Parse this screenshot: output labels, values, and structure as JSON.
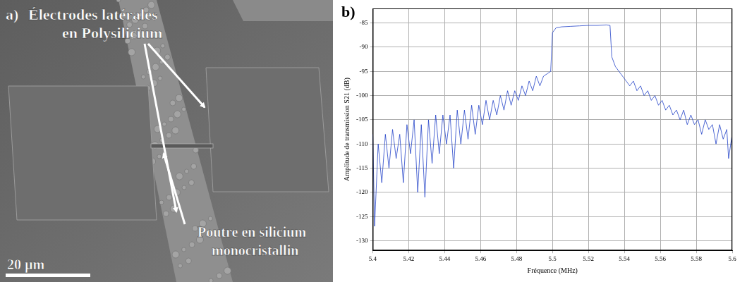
{
  "figure": {
    "image_panel": {
      "label": "a)",
      "annotations": [
        [
          "Électrodes latérales",
          "en Polysilicium"
        ],
        [
          "Poutre en silicium",
          "monocristallin"
        ]
      ],
      "scale_bar": "20 µm"
    },
    "chart_label": "b)"
  },
  "chart_data": {
    "type": "line",
    "x_label": "Fréquence (MHz)",
    "y_label": "Amplitude de transmission S21 (dB)",
    "x": [
      5.4,
      5.401,
      5.403,
      5.405,
      5.407,
      5.409,
      5.411,
      5.413,
      5.415,
      5.417,
      5.419,
      5.421,
      5.423,
      5.425,
      5.427,
      5.429,
      5.431,
      5.433,
      5.435,
      5.437,
      5.439,
      5.441,
      5.443,
      5.445,
      5.447,
      5.449,
      5.451,
      5.453,
      5.455,
      5.457,
      5.459,
      5.461,
      5.463,
      5.465,
      5.467,
      5.469,
      5.471,
      5.473,
      5.475,
      5.477,
      5.479,
      5.481,
      5.483,
      5.485,
      5.487,
      5.489,
      5.491,
      5.493,
      5.495,
      5.497,
      5.499,
      5.5,
      5.502,
      5.505,
      5.51,
      5.515,
      5.52,
      5.525,
      5.53,
      5.532,
      5.533,
      5.535,
      5.537,
      5.539,
      5.541,
      5.543,
      5.545,
      5.547,
      5.549,
      5.551,
      5.553,
      5.555,
      5.557,
      5.559,
      5.561,
      5.563,
      5.565,
      5.567,
      5.569,
      5.571,
      5.573,
      5.575,
      5.577,
      5.579,
      5.581,
      5.583,
      5.585,
      5.587,
      5.589,
      5.591,
      5.593,
      5.595,
      5.597,
      5.598,
      5.6
    ],
    "values": [
      -108,
      -127,
      -110,
      -118,
      -108,
      -115,
      -107,
      -113,
      -108,
      -118,
      -106,
      -112,
      -105,
      -120,
      -106,
      -121,
      -105,
      -114,
      -104,
      -112,
      -104,
      -110,
      -104,
      -115,
      -103,
      -110,
      -103,
      -109,
      -102,
      -108,
      -102,
      -106,
      -101,
      -105,
      -101,
      -104,
      -100,
      -103,
      -99,
      -102,
      -99,
      -101,
      -98,
      -100,
      -97,
      -99,
      -96,
      -98,
      -96,
      -95.5,
      -95,
      -87,
      -86,
      -85.8,
      -85.7,
      -85.6,
      -85.5,
      -85.5,
      -85.4,
      -85.5,
      -92,
      -94,
      -95,
      -96,
      -97,
      -98,
      -97,
      -99,
      -98,
      -100,
      -99,
      -101,
      -100,
      -102,
      -101,
      -103,
      -102,
      -104,
      -103,
      -105,
      -103,
      -106,
      -104,
      -106,
      -105,
      -108,
      -105,
      -107,
      -106,
      -110,
      -106,
      -109,
      -107,
      -113,
      -108
    ],
    "color": "#2343c8",
    "xlim": [
      5.4,
      5.6
    ],
    "xticks": [
      5.4,
      5.42,
      5.44,
      5.46,
      5.48,
      5.5,
      5.52,
      5.54,
      5.56,
      5.58,
      5.6
    ],
    "ylim": [
      -132,
      -82
    ],
    "yticks": [
      -130,
      -125,
      -120,
      -115,
      -110,
      -105,
      -100,
      -95,
      -90,
      -85
    ],
    "grid": true
  }
}
